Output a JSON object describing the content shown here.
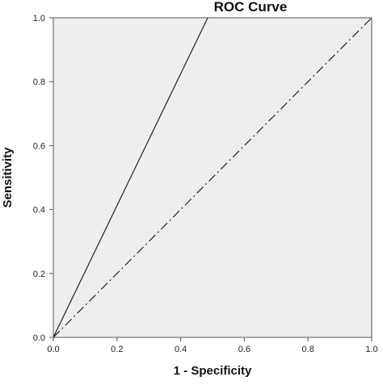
{
  "chart_data": {
    "type": "line",
    "title": "ROC Curve",
    "xlabel": "1 - Specificity",
    "ylabel": "Sensitivity",
    "xlim": [
      0,
      1
    ],
    "ylim": [
      0,
      1
    ],
    "xticks": [
      "0.0",
      "0.2",
      "0.4",
      "0.6",
      "0.8",
      "1.0"
    ],
    "yticks": [
      "0.0",
      "0.2",
      "0.4",
      "0.6",
      "0.8",
      "1.0"
    ],
    "grid": false,
    "series": [
      {
        "style": "solid",
        "x": [
          0.0,
          0.485
        ],
        "y": [
          0.0,
          1.0
        ]
      },
      {
        "style": "dash-dot",
        "x": [
          0.0,
          1.0
        ],
        "y": [
          0.0,
          1.0
        ]
      }
    ],
    "colors": {
      "plot_background": "#eeeeee",
      "line": "#222222"
    }
  }
}
